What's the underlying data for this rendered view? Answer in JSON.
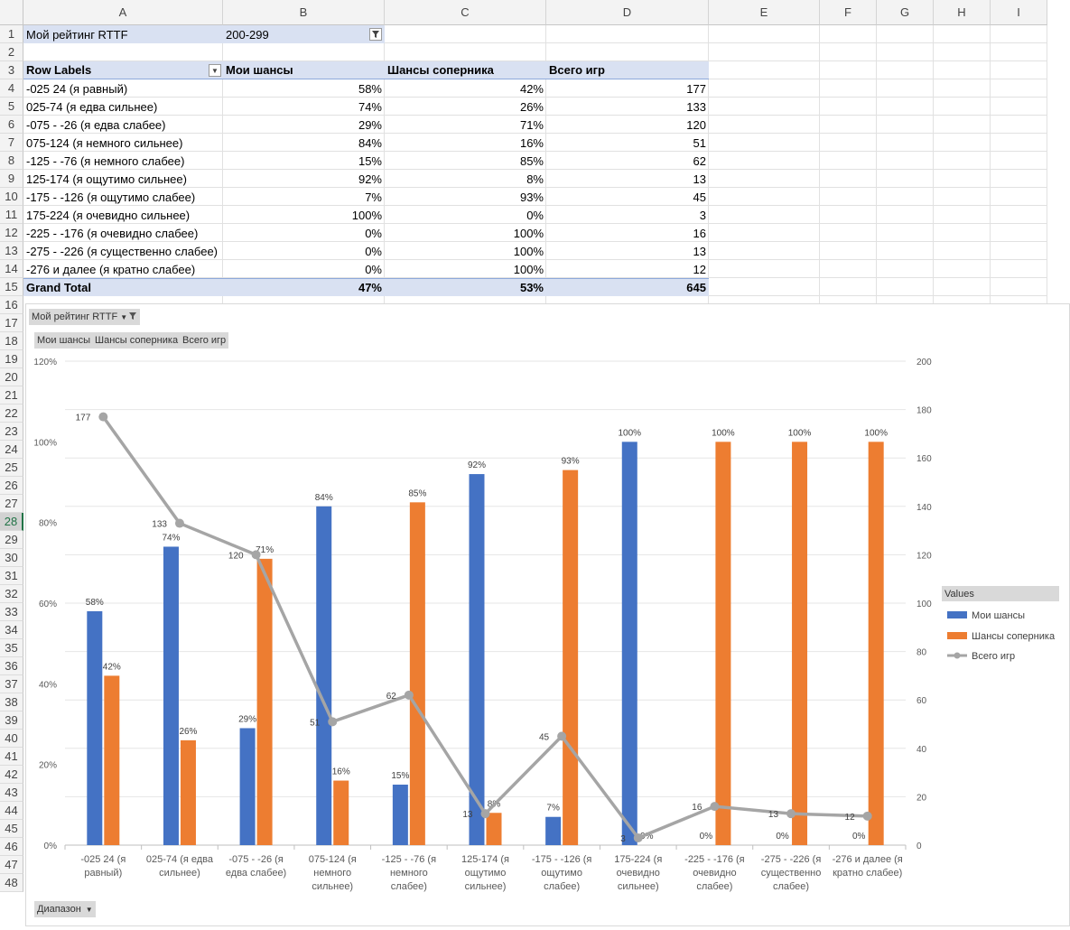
{
  "columns": [
    "A",
    "B",
    "C",
    "D",
    "E",
    "F",
    "G",
    "H",
    "I"
  ],
  "rows": [
    "1",
    "2",
    "3",
    "4",
    "5",
    "6",
    "7",
    "8",
    "9",
    "10",
    "11",
    "12",
    "13",
    "14",
    "15",
    "16",
    "17",
    "18",
    "19",
    "20",
    "21",
    "22",
    "23",
    "24",
    "25",
    "26",
    "27",
    "28",
    "29",
    "30",
    "31",
    "32",
    "33",
    "34",
    "35",
    "36",
    "37",
    "38",
    "39",
    "40",
    "41",
    "42",
    "43",
    "44",
    "45",
    "46",
    "47",
    "48"
  ],
  "selected_row": "28",
  "filter": {
    "label": "Мой рейтинг RTTF",
    "value": "200-299",
    "icon": "filter-icon"
  },
  "pivot": {
    "headers": [
      "Row Labels",
      "Мои шансы",
      "Шансы соперника",
      "Всего игр"
    ],
    "rows": [
      [
        "-025  24 (я равный)",
        "58%",
        "42%",
        "177"
      ],
      [
        "025-74 (я едва сильнее)",
        "74%",
        "26%",
        "133"
      ],
      [
        "-075 - -26 (я едва слабее)",
        "29%",
        "71%",
        "120"
      ],
      [
        "075-124 (я немного сильнее)",
        "84%",
        "16%",
        "51"
      ],
      [
        "-125 - -76 (я немного слабее)",
        "15%",
        "85%",
        "62"
      ],
      [
        "125-174 (я ощутимо сильнее)",
        "92%",
        "8%",
        "13"
      ],
      [
        "-175 - -126 (я ощутимо слабее)",
        "7%",
        "93%",
        "45"
      ],
      [
        "175-224 (я очевидно сильнее)",
        "100%",
        "0%",
        "3"
      ],
      [
        "-225 - -176 (я очевидно слабее)",
        "0%",
        "100%",
        "16"
      ],
      [
        "-275 - -226 (я существенно слабее)",
        "0%",
        "100%",
        "13"
      ],
      [
        "-276 и далее (я кратно слабее)",
        "0%",
        "100%",
        "12"
      ]
    ],
    "total": [
      "Grand Total",
      "47%",
      "53%",
      "645"
    ]
  },
  "chart_buttons": {
    "filter_field": "Мой рейтинг RTTF",
    "values": [
      "Мои шансы",
      "Шансы соперника",
      "Всего игр"
    ],
    "axis_field": "Диапазон"
  },
  "chart_data": {
    "type": "bar",
    "categories": [
      [
        "-025  24 (я",
        "равный)"
      ],
      [
        "025-74 (я едва",
        "сильнее)"
      ],
      [
        "-075 - -26 (я",
        "едва слабее)"
      ],
      [
        "075-124 (я",
        "немного",
        "сильнее)"
      ],
      [
        "-125 - -76 (я",
        "немного",
        "слабее)"
      ],
      [
        "125-174 (я",
        "ощутимо",
        "сильнее)"
      ],
      [
        "-175 - -126 (я",
        "ощутимо",
        "слабее)"
      ],
      [
        "175-224 (я",
        "очевидно",
        "сильнее)"
      ],
      [
        "-225 - -176 (я",
        "очевидно",
        "слабее)"
      ],
      [
        "-275 - -226 (я",
        "существенно",
        "слабее)"
      ],
      [
        "-276 и далее (я",
        "кратно слабее)"
      ]
    ],
    "series": [
      {
        "name": "Мои шансы",
        "type": "bar",
        "axis": "left",
        "color": "#4472c4",
        "values": [
          58,
          74,
          29,
          84,
          15,
          92,
          7,
          100,
          0,
          0,
          0
        ],
        "labels": [
          "58%",
          "74%",
          "29%",
          "84%",
          "15%",
          "92%",
          "7%",
          "100%",
          "0%",
          "0%",
          "0%"
        ]
      },
      {
        "name": "Шансы соперника",
        "type": "bar",
        "axis": "left",
        "color": "#ed7d31",
        "values": [
          42,
          26,
          71,
          16,
          85,
          8,
          93,
          0,
          100,
          100,
          100
        ],
        "labels": [
          "42%",
          "26%",
          "71%",
          "16%",
          "85%",
          "8%",
          "93%",
          "0%",
          "100%",
          "100%",
          "100%"
        ]
      },
      {
        "name": "Всего игр",
        "type": "line",
        "axis": "right",
        "color": "#a5a5a5",
        "values": [
          177,
          133,
          120,
          51,
          62,
          13,
          45,
          3,
          16,
          13,
          12
        ],
        "labels": [
          "177",
          "133",
          "120",
          "51",
          "62",
          "13",
          "45",
          "3",
          "16",
          "13",
          "12"
        ]
      }
    ],
    "y_left": {
      "min": 0,
      "max": 120,
      "ticks": [
        "0%",
        "20%",
        "40%",
        "60%",
        "80%",
        "100%",
        "120%"
      ]
    },
    "y_right": {
      "min": 0,
      "max": 200,
      "ticks": [
        "0",
        "20",
        "40",
        "60",
        "80",
        "100",
        "120",
        "140",
        "160",
        "180",
        "200"
      ]
    },
    "legend": {
      "title": "Values",
      "position": "right"
    },
    "grid": true
  }
}
